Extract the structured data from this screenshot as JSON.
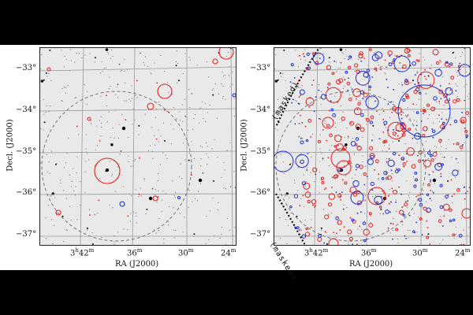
{
  "figure": {
    "panels": [
      {
        "id": "left",
        "y_ticks": [
          "−33°",
          "−34°",
          "−35°",
          "−36°",
          "−37°"
        ],
        "x_ticks": [
          {
            "h": "3",
            "hu": "h",
            "m": "42",
            "mu": "m"
          },
          {
            "m": "36",
            "mu": "m"
          },
          {
            "m": "30",
            "mu": "m"
          },
          {
            "m": "24",
            "mu": "m"
          }
        ],
        "xlabel": "RA (J2000)",
        "ylabel": "Decl. (J2000)"
      },
      {
        "id": "right",
        "y_ticks": [
          "−33°",
          "−34°",
          "−35°",
          "−36°",
          "−37°"
        ],
        "x_ticks": [
          {
            "h": "3",
            "hu": "h",
            "m": "42",
            "mu": "m"
          },
          {
            "m": "36",
            "mu": "m"
          },
          {
            "m": "30",
            "mu": "m"
          },
          {
            "m": "24",
            "mu": "m"
          }
        ],
        "xlabel": "RA (J2000)",
        "ylabel": "Decl. (J2000)",
        "masked_labels": [
          "(masked)",
          "(masked)"
        ]
      }
    ],
    "colors": {
      "red_markers": "#e02020",
      "blue_markers": "#1a2fd0",
      "grid": "#9a9a9a",
      "field_boundary": "#777777",
      "mask_line": "#111111",
      "sky_background": "#e9e9e9"
    }
  }
}
